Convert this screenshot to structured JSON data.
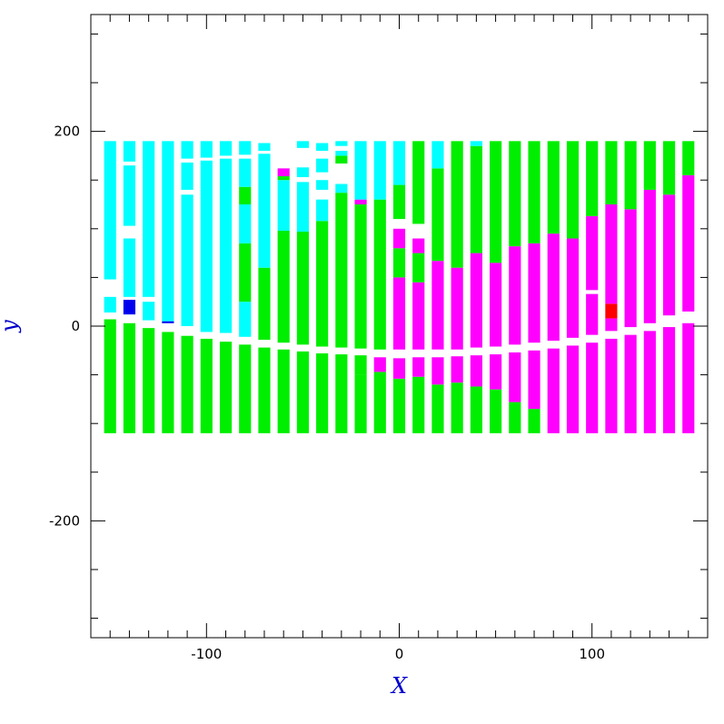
{
  "chart_data": {
    "type": "heatmap",
    "title": "",
    "xlabel": "X",
    "ylabel": "y",
    "xlim": [
      -160,
      160
    ],
    "ylim": [
      -320,
      320
    ],
    "x_ticks": [
      -100,
      0,
      100
    ],
    "y_ticks": [
      -200,
      0,
      200
    ],
    "grid": false,
    "colors": {
      "frame": "#000000",
      "axis_title": "#0000cc",
      "cyan": "#00ffff",
      "green": "#00ee00",
      "magenta": "#ff00ff",
      "blue": "#0000ee",
      "red": "#ff0000"
    },
    "columns": [
      {
        "x": -150,
        "segments": [
          {
            "y0": -110,
            "y1": 7,
            "c": "green"
          },
          {
            "y0": 14,
            "y1": 30,
            "c": "cyan"
          },
          {
            "y0": 48,
            "y1": 190,
            "c": "cyan"
          }
        ]
      },
      {
        "x": -140,
        "segments": [
          {
            "y0": -110,
            "y1": 3,
            "c": "green"
          },
          {
            "y0": 12,
            "y1": 27,
            "c": "blue"
          },
          {
            "y0": 30,
            "y1": 90,
            "c": "cyan"
          },
          {
            "y0": 103,
            "y1": 165,
            "c": "cyan"
          },
          {
            "y0": 169,
            "y1": 190,
            "c": "cyan"
          }
        ]
      },
      {
        "x": -130,
        "segments": [
          {
            "y0": -110,
            "y1": -2,
            "c": "green"
          },
          {
            "y0": 6,
            "y1": 25,
            "c": "cyan"
          },
          {
            "y0": 30,
            "y1": 190,
            "c": "cyan"
          }
        ]
      },
      {
        "x": -120,
        "segments": [
          {
            "y0": -110,
            "y1": -6,
            "c": "green"
          },
          {
            "y0": 3,
            "y1": 5,
            "c": "blue"
          },
          {
            "y0": 5,
            "y1": 190,
            "c": "cyan"
          }
        ]
      },
      {
        "x": -110,
        "segments": [
          {
            "y0": -110,
            "y1": -10,
            "c": "green"
          },
          {
            "y0": 0,
            "y1": 135,
            "c": "cyan"
          },
          {
            "y0": 140,
            "y1": 168,
            "c": "cyan"
          },
          {
            "y0": 172,
            "y1": 190,
            "c": "cyan"
          }
        ]
      },
      {
        "x": -100,
        "segments": [
          {
            "y0": -110,
            "y1": -13,
            "c": "green"
          },
          {
            "y0": -6,
            "y1": 170,
            "c": "cyan"
          },
          {
            "y0": 173,
            "y1": 190,
            "c": "cyan"
          }
        ]
      },
      {
        "x": -90,
        "segments": [
          {
            "y0": -110,
            "y1": -16,
            "c": "green"
          },
          {
            "y0": -7,
            "y1": 172,
            "c": "cyan"
          },
          {
            "y0": 175,
            "y1": 190,
            "c": "cyan"
          }
        ]
      },
      {
        "x": -80,
        "segments": [
          {
            "y0": -110,
            "y1": -19,
            "c": "green"
          },
          {
            "y0": -11,
            "y1": 25,
            "c": "cyan"
          },
          {
            "y0": 25,
            "y1": 85,
            "c": "green"
          },
          {
            "y0": 85,
            "y1": 125,
            "c": "cyan"
          },
          {
            "y0": 125,
            "y1": 143,
            "c": "green"
          },
          {
            "y0": 143,
            "y1": 172,
            "c": "cyan"
          },
          {
            "y0": 176,
            "y1": 190,
            "c": "cyan"
          }
        ]
      },
      {
        "x": -70,
        "segments": [
          {
            "y0": -110,
            "y1": -22,
            "c": "green"
          },
          {
            "y0": -14,
            "y1": 60,
            "c": "green"
          },
          {
            "y0": 60,
            "y1": 177,
            "c": "cyan"
          },
          {
            "y0": 180,
            "y1": 188,
            "c": "cyan"
          }
        ]
      },
      {
        "x": -60,
        "segments": [
          {
            "y0": -110,
            "y1": -24,
            "c": "green"
          },
          {
            "y0": -17,
            "y1": 98,
            "c": "green"
          },
          {
            "y0": 98,
            "y1": 150,
            "c": "cyan"
          },
          {
            "y0": 150,
            "y1": 154,
            "c": "green"
          },
          {
            "y0": 154,
            "y1": 162,
            "c": "magenta"
          }
        ]
      },
      {
        "x": -50,
        "segments": [
          {
            "y0": -110,
            "y1": -26,
            "c": "green"
          },
          {
            "y0": -19,
            "y1": 97,
            "c": "green"
          },
          {
            "y0": 97,
            "y1": 148,
            "c": "cyan"
          },
          {
            "y0": 153,
            "y1": 163,
            "c": "cyan"
          },
          {
            "y0": 183,
            "y1": 190,
            "c": "cyan"
          }
        ]
      },
      {
        "x": -40,
        "segments": [
          {
            "y0": -110,
            "y1": -28,
            "c": "green"
          },
          {
            "y0": -21,
            "y1": 108,
            "c": "green"
          },
          {
            "y0": 108,
            "y1": 130,
            "c": "cyan"
          },
          {
            "y0": 140,
            "y1": 150,
            "c": "cyan"
          },
          {
            "y0": 158,
            "y1": 172,
            "c": "cyan"
          },
          {
            "y0": 180,
            "y1": 188,
            "c": "cyan"
          }
        ]
      },
      {
        "x": -30,
        "segments": [
          {
            "y0": -110,
            "y1": -29,
            "c": "green"
          },
          {
            "y0": -22,
            "y1": 137,
            "c": "green"
          },
          {
            "y0": 137,
            "y1": 146,
            "c": "cyan"
          },
          {
            "y0": 167,
            "y1": 175,
            "c": "green"
          },
          {
            "y0": 175,
            "y1": 180,
            "c": "cyan"
          },
          {
            "y0": 185,
            "y1": 190,
            "c": "cyan"
          }
        ]
      },
      {
        "x": -20,
        "segments": [
          {
            "y0": -110,
            "y1": -50,
            "c": "green"
          },
          {
            "y0": -50,
            "y1": -30,
            "c": "green"
          },
          {
            "y0": -23,
            "y1": 125,
            "c": "green"
          },
          {
            "y0": 125,
            "y1": 130,
            "c": "magenta"
          },
          {
            "y0": 130,
            "y1": 190,
            "c": "cyan"
          }
        ]
      },
      {
        "x": -10,
        "segments": [
          {
            "y0": -110,
            "y1": -47,
            "c": "green"
          },
          {
            "y0": -47,
            "y1": -32,
            "c": "magenta"
          },
          {
            "y0": -24,
            "y1": 130,
            "c": "green"
          },
          {
            "y0": 130,
            "y1": 190,
            "c": "cyan"
          }
        ]
      },
      {
        "x": 0,
        "segments": [
          {
            "y0": -110,
            "y1": -54,
            "c": "green"
          },
          {
            "y0": -54,
            "y1": -33,
            "c": "magenta"
          },
          {
            "y0": -24,
            "y1": 50,
            "c": "magenta"
          },
          {
            "y0": 50,
            "y1": 80,
            "c": "green"
          },
          {
            "y0": 80,
            "y1": 100,
            "c": "magenta"
          },
          {
            "y0": 110,
            "y1": 145,
            "c": "green"
          },
          {
            "y0": 145,
            "y1": 190,
            "c": "cyan"
          }
        ]
      },
      {
        "x": 10,
        "segments": [
          {
            "y0": -110,
            "y1": -52,
            "c": "green"
          },
          {
            "y0": -52,
            "y1": -32,
            "c": "magenta"
          },
          {
            "y0": -24,
            "y1": 45,
            "c": "magenta"
          },
          {
            "y0": 45,
            "y1": 75,
            "c": "green"
          },
          {
            "y0": 75,
            "y1": 90,
            "c": "magenta"
          },
          {
            "y0": 105,
            "y1": 190,
            "c": "green"
          }
        ]
      },
      {
        "x": 20,
        "segments": [
          {
            "y0": -110,
            "y1": -60,
            "c": "green"
          },
          {
            "y0": -60,
            "y1": -32,
            "c": "magenta"
          },
          {
            "y0": -24,
            "y1": 67,
            "c": "magenta"
          },
          {
            "y0": 67,
            "y1": 162,
            "c": "green"
          },
          {
            "y0": 162,
            "y1": 190,
            "c": "cyan"
          }
        ]
      },
      {
        "x": 30,
        "segments": [
          {
            "y0": -110,
            "y1": -58,
            "c": "green"
          },
          {
            "y0": -58,
            "y1": -31,
            "c": "magenta"
          },
          {
            "y0": -24,
            "y1": 60,
            "c": "magenta"
          },
          {
            "y0": 60,
            "y1": 190,
            "c": "green"
          }
        ]
      },
      {
        "x": 40,
        "segments": [
          {
            "y0": -110,
            "y1": -62,
            "c": "green"
          },
          {
            "y0": -62,
            "y1": -30,
            "c": "magenta"
          },
          {
            "y0": -22,
            "y1": 75,
            "c": "magenta"
          },
          {
            "y0": 75,
            "y1": 185,
            "c": "green"
          },
          {
            "y0": 185,
            "y1": 190,
            "c": "cyan"
          }
        ]
      },
      {
        "x": 50,
        "segments": [
          {
            "y0": -110,
            "y1": -65,
            "c": "green"
          },
          {
            "y0": -65,
            "y1": -29,
            "c": "magenta"
          },
          {
            "y0": -21,
            "y1": 65,
            "c": "magenta"
          },
          {
            "y0": 65,
            "y1": 190,
            "c": "green"
          }
        ]
      },
      {
        "x": 60,
        "segments": [
          {
            "y0": -110,
            "y1": -78,
            "c": "green"
          },
          {
            "y0": -78,
            "y1": -27,
            "c": "magenta"
          },
          {
            "y0": -19,
            "y1": 82,
            "c": "magenta"
          },
          {
            "y0": 82,
            "y1": 190,
            "c": "green"
          }
        ]
      },
      {
        "x": 70,
        "segments": [
          {
            "y0": -110,
            "y1": -85,
            "c": "green"
          },
          {
            "y0": -85,
            "y1": -25,
            "c": "magenta"
          },
          {
            "y0": -17,
            "y1": 85,
            "c": "magenta"
          },
          {
            "y0": 85,
            "y1": 190,
            "c": "green"
          }
        ]
      },
      {
        "x": 80,
        "segments": [
          {
            "y0": -110,
            "y1": -23,
            "c": "magenta"
          },
          {
            "y0": -15,
            "y1": 95,
            "c": "magenta"
          },
          {
            "y0": 95,
            "y1": 190,
            "c": "green"
          }
        ]
      },
      {
        "x": 90,
        "segments": [
          {
            "y0": -110,
            "y1": -20,
            "c": "magenta"
          },
          {
            "y0": -12,
            "y1": 90,
            "c": "magenta"
          },
          {
            "y0": 90,
            "y1": 190,
            "c": "green"
          }
        ]
      },
      {
        "x": 100,
        "segments": [
          {
            "y0": -110,
            "y1": -17,
            "c": "magenta"
          },
          {
            "y0": -9,
            "y1": 33,
            "c": "magenta"
          },
          {
            "y0": 37,
            "y1": 113,
            "c": "magenta"
          },
          {
            "y0": 113,
            "y1": 190,
            "c": "green"
          }
        ]
      },
      {
        "x": 110,
        "segments": [
          {
            "y0": -110,
            "y1": -13,
            "c": "magenta"
          },
          {
            "y0": -5,
            "y1": 8,
            "c": "magenta"
          },
          {
            "y0": 8,
            "y1": 23,
            "c": "red"
          },
          {
            "y0": 23,
            "y1": 125,
            "c": "magenta"
          },
          {
            "y0": 125,
            "y1": 190,
            "c": "green"
          }
        ]
      },
      {
        "x": 120,
        "segments": [
          {
            "y0": -110,
            "y1": -9,
            "c": "magenta"
          },
          {
            "y0": -1,
            "y1": 120,
            "c": "magenta"
          },
          {
            "y0": 120,
            "y1": 190,
            "c": "green"
          }
        ]
      },
      {
        "x": 130,
        "segments": [
          {
            "y0": -110,
            "y1": -5,
            "c": "magenta"
          },
          {
            "y0": 3,
            "y1": 140,
            "c": "magenta"
          },
          {
            "y0": 140,
            "y1": 190,
            "c": "green"
          }
        ]
      },
      {
        "x": 140,
        "segments": [
          {
            "y0": -110,
            "y1": -1,
            "c": "magenta"
          },
          {
            "y0": 11,
            "y1": 135,
            "c": "magenta"
          },
          {
            "y0": 135,
            "y1": 190,
            "c": "green"
          }
        ]
      },
      {
        "x": 150,
        "segments": [
          {
            "y0": -110,
            "y1": 3,
            "c": "magenta"
          },
          {
            "y0": 15,
            "y1": 155,
            "c": "magenta"
          },
          {
            "y0": 155,
            "y1": 190,
            "c": "green"
          }
        ]
      }
    ]
  }
}
